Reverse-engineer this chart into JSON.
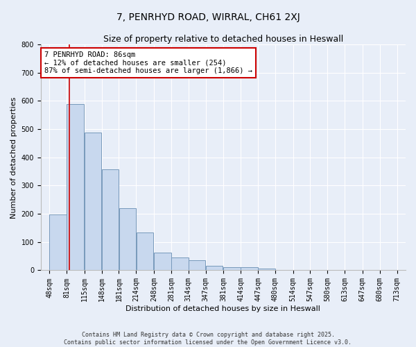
{
  "title": "7, PENRHYD ROAD, WIRRAL, CH61 2XJ",
  "subtitle": "Size of property relative to detached houses in Heswall",
  "xlabel": "Distribution of detached houses by size in Heswall",
  "ylabel": "Number of detached properties",
  "bins": [
    48,
    81,
    115,
    148,
    181,
    214,
    248,
    281,
    314,
    347,
    381,
    414,
    447,
    480,
    514,
    547,
    580,
    613,
    647,
    680,
    713
  ],
  "bar_values": [
    197,
    590,
    487,
    358,
    219,
    135,
    62,
    46,
    35,
    15,
    11,
    10,
    5,
    1,
    1,
    0,
    0,
    0,
    0,
    0
  ],
  "bar_color": "#c8d8ee",
  "bar_edge_color": "#7799bb",
  "property_line_x": 86,
  "property_line_color": "#cc0000",
  "ylim": [
    0,
    800
  ],
  "yticks": [
    0,
    100,
    200,
    300,
    400,
    500,
    600,
    700,
    800
  ],
  "annotation_title": "7 PENRHYD ROAD: 86sqm",
  "annotation_line1": "← 12% of detached houses are smaller (254)",
  "annotation_line2": "87% of semi-detached houses are larger (1,866) →",
  "annotation_box_color": "#ffffff",
  "annotation_box_edge_color": "#cc0000",
  "background_color": "#e8eef8",
  "footer_line1": "Contains HM Land Registry data © Crown copyright and database right 2025.",
  "footer_line2": "Contains public sector information licensed under the Open Government Licence v3.0.",
  "title_fontsize": 10,
  "subtitle_fontsize": 9,
  "axis_label_fontsize": 8,
  "tick_label_fontsize": 7,
  "annotation_fontsize": 7.5,
  "footer_fontsize": 6
}
